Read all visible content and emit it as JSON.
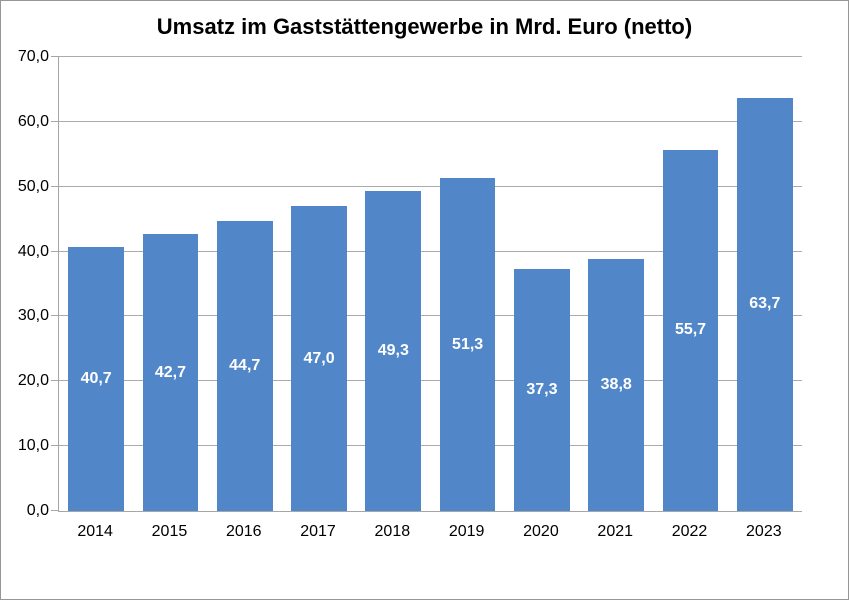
{
  "chart_data": {
    "type": "bar",
    "title": "Umsatz im Gaststättengewerbe in Mrd. Euro (netto)",
    "categories": [
      "2014",
      "2015",
      "2016",
      "2017",
      "2018",
      "2019",
      "2020",
      "2021",
      "2022",
      "2023"
    ],
    "values": [
      40.7,
      42.7,
      44.7,
      47.0,
      49.3,
      51.3,
      37.3,
      38.8,
      55.7,
      63.7
    ],
    "value_labels": [
      "40,7",
      "42,7",
      "44,7",
      "47,0",
      "49,3",
      "51,3",
      "37,3",
      "38,8",
      "55,7",
      "63,7"
    ],
    "xlabel": "",
    "ylabel": "",
    "ylim": [
      0,
      70
    ],
    "ytick_values": [
      0,
      10,
      20,
      30,
      40,
      50,
      60,
      70
    ],
    "ytick_labels": [
      "0,0",
      "10,0",
      "20,0",
      "30,0",
      "40,0",
      "50,0",
      "60,0",
      "70,0"
    ],
    "grid": true,
    "legend": "none",
    "value_label_position": "center-of-bar",
    "colors": {
      "bar": "#5187C9",
      "bar_value_text": "#FFFFFF",
      "gridline": "#ABABAB",
      "axis": "#A6A6A6",
      "tick": "#A6A6A6",
      "text": "#000000",
      "background": "#FFFFFF",
      "figure_border": "#969696"
    }
  }
}
